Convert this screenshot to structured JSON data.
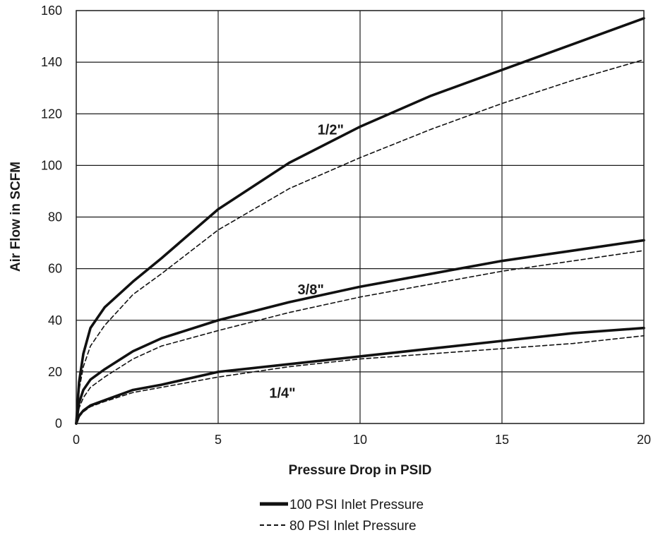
{
  "chart_data": {
    "type": "line",
    "title": "",
    "xlabel": "Pressure Drop in PSID",
    "ylabel": "Air Flow in SCFM",
    "xlim": [
      0,
      20
    ],
    "ylim": [
      0,
      160
    ],
    "xticks": [
      0,
      5,
      10,
      15,
      20
    ],
    "yticks": [
      0,
      20,
      40,
      60,
      80,
      100,
      120,
      140,
      160
    ],
    "grid": true,
    "legend": {
      "placement": "bottom-center",
      "entries": [
        {
          "label": "100 PSI Inlet Pressure",
          "style": "solid"
        },
        {
          "label": "80 PSI Inlet Pressure",
          "style": "dashed"
        }
      ]
    },
    "curve_labels": [
      {
        "text": "1/2\"",
        "x": 8.5,
        "y": 112
      },
      {
        "text": "3/8\"",
        "x": 7.8,
        "y": 50
      },
      {
        "text": "1/4\"",
        "x": 6.8,
        "y": 10
      }
    ],
    "series": [
      {
        "group": "1/2\"",
        "style": "solid",
        "x": [
          0,
          0.1,
          0.25,
          0.5,
          1,
          2,
          3,
          5,
          7.5,
          10,
          12.5,
          15,
          17.5,
          20
        ],
        "y": [
          0,
          16,
          27,
          37,
          45,
          55,
          64,
          83,
          101,
          115,
          127,
          137,
          147,
          157
        ]
      },
      {
        "group": "1/2\"",
        "style": "dashed",
        "x": [
          0,
          0.1,
          0.25,
          0.5,
          1,
          2,
          3,
          5,
          7.5,
          10,
          12.5,
          15,
          17.5,
          20
        ],
        "y": [
          0,
          13,
          22,
          30,
          38,
          50,
          58,
          75,
          91,
          103,
          114,
          124,
          133,
          141
        ]
      },
      {
        "group": "3/8\"",
        "style": "solid",
        "x": [
          0,
          0.1,
          0.25,
          0.5,
          1,
          2,
          3,
          5,
          7.5,
          10,
          12.5,
          15,
          17.5,
          20
        ],
        "y": [
          0,
          8,
          13,
          17,
          21,
          28,
          33,
          40,
          47,
          53,
          58,
          63,
          67,
          71
        ]
      },
      {
        "group": "3/8\"",
        "style": "dashed",
        "x": [
          0,
          0.1,
          0.25,
          0.5,
          1,
          2,
          3,
          5,
          7.5,
          10,
          12.5,
          15,
          17.5,
          20
        ],
        "y": [
          0,
          6,
          10,
          14,
          18,
          25,
          30,
          36,
          43,
          49,
          54,
          59,
          63,
          67
        ]
      },
      {
        "group": "1/4\"",
        "style": "solid",
        "x": [
          0,
          0.1,
          0.25,
          0.5,
          1,
          2,
          3,
          5,
          7.5,
          10,
          12.5,
          15,
          17.5,
          20
        ],
        "y": [
          0,
          3,
          5,
          7,
          9,
          13,
          15,
          20,
          23,
          26,
          29,
          32,
          35,
          37
        ]
      },
      {
        "group": "1/4\"",
        "style": "dashed",
        "x": [
          0,
          0.1,
          0.25,
          0.5,
          1,
          2,
          3,
          5,
          7.5,
          10,
          12.5,
          15,
          17.5,
          20
        ],
        "y": [
          0,
          2.5,
          4.5,
          6.5,
          8.5,
          12,
          14,
          18,
          22,
          25,
          27,
          29,
          31,
          34
        ]
      }
    ]
  }
}
